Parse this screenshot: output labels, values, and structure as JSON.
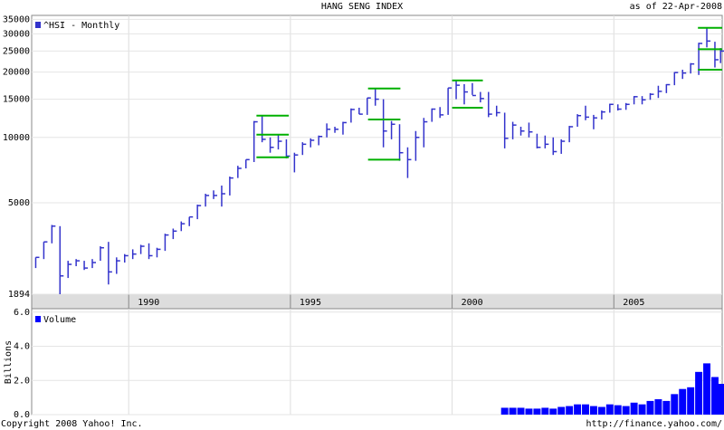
{
  "chart_data": [
    {
      "type": "ohlc",
      "title": "HANG SENG INDEX",
      "subtitle": "as of 22-Apr-2008",
      "series_name": "^HSI - Monthly",
      "color": "#3333cc",
      "log_scale": true,
      "grid": true,
      "x": [
        1987.125,
        1987.375,
        1987.625,
        1987.875,
        1988.125,
        1988.375,
        1988.625,
        1988.875,
        1989.125,
        1989.375,
        1989.625,
        1989.875,
        1990.125,
        1990.375,
        1990.625,
        1990.875,
        1991.125,
        1991.375,
        1991.625,
        1991.875,
        1992.125,
        1992.375,
        1992.625,
        1992.875,
        1993.125,
        1993.375,
        1993.625,
        1993.875,
        1994.125,
        1994.375,
        1994.625,
        1994.875,
        1995.125,
        1995.375,
        1995.625,
        1995.875,
        1996.125,
        1996.375,
        1996.625,
        1996.875,
        1997.125,
        1997.375,
        1997.625,
        1997.875,
        1998.125,
        1998.375,
        1998.625,
        1998.875,
        1999.125,
        1999.375,
        1999.625,
        1999.875,
        2000.125,
        2000.375,
        2000.625,
        2000.875,
        2001.125,
        2001.375,
        2001.625,
        2001.875,
        2002.125,
        2002.375,
        2002.625,
        2002.875,
        2003.125,
        2003.375,
        2003.625,
        2003.875,
        2004.125,
        2004.375,
        2004.625,
        2004.875,
        2005.125,
        2005.375,
        2005.625,
        2005.875,
        2006.125,
        2006.375,
        2006.625,
        2006.875,
        2007.125,
        2007.375,
        2007.625,
        2007.875,
        2008.125,
        2008.3
      ],
      "low": [
        2500,
        2750,
        3250,
        1894,
        2250,
        2550,
        2450,
        2500,
        2700,
        2100,
        2350,
        2650,
        2750,
        2900,
        2750,
        2800,
        3000,
        3400,
        3700,
        3900,
        4200,
        4800,
        5200,
        4800,
        5400,
        6500,
        7200,
        7700,
        9500,
        8500,
        8800,
        8000,
        6900,
        8300,
        9000,
        9200,
        10000,
        10500,
        10300,
        11700,
        12800,
        12700,
        14000,
        9000,
        9800,
        7800,
        6500,
        7800,
        9000,
        11800,
        12300,
        12700,
        15000,
        14200,
        15700,
        14500,
        12400,
        12500,
        8900,
        9800,
        10200,
        10000,
        8900,
        8900,
        8300,
        8400,
        9500,
        11200,
        12000,
        10900,
        12100,
        13000,
        13300,
        13400,
        14200,
        14200,
        14900,
        15200,
        16000,
        17400,
        18600,
        19700,
        19400,
        26000,
        21000,
        22000
      ],
      "high": [
        2800,
        3300,
        3950,
        3900,
        2700,
        2750,
        2700,
        2750,
        3150,
        3300,
        2800,
        2900,
        3050,
        3200,
        3250,
        3100,
        3600,
        3800,
        4100,
        4300,
        4900,
        5500,
        5700,
        6000,
        6600,
        7400,
        7900,
        11900,
        12600,
        10000,
        10300,
        9800,
        8500,
        9500,
        9900,
        10200,
        11600,
        11200,
        11800,
        13600,
        13700,
        15200,
        16800,
        15000,
        11900,
        11500,
        9000,
        10700,
        12300,
        13600,
        13800,
        16900,
        18300,
        17600,
        17800,
        16200,
        16200,
        14000,
        13000,
        11800,
        11200,
        11700,
        10400,
        10200,
        10000,
        9800,
        11300,
        12800,
        14000,
        12700,
        13300,
        14300,
        14200,
        14400,
        15500,
        15500,
        16000,
        17300,
        17600,
        20000,
        20500,
        22000,
        27300,
        31900,
        27600,
        25800
      ],
      "close": [
        2800,
        3300,
        3900,
        2300,
        2600,
        2700,
        2500,
        2650,
        3100,
        2400,
        2700,
        2850,
        2900,
        3150,
        2850,
        3050,
        3550,
        3700,
        4000,
        4300,
        4850,
        5400,
        5400,
        5500,
        6500,
        7200,
        7900,
        11800,
        9800,
        9000,
        9600,
        8200,
        8300,
        9300,
        9700,
        10100,
        10900,
        10900,
        11700,
        13450,
        12800,
        15200,
        15000,
        10700,
        11500,
        8500,
        7900,
        10000,
        11800,
        13500,
        12700,
        16900,
        17400,
        16200,
        15600,
        15100,
        12800,
        13000,
        9900,
        11400,
        10700,
        10600,
        9000,
        9300,
        8600,
        9600,
        11200,
        12600,
        12400,
        12300,
        13100,
        14200,
        13500,
        14200,
        15400,
        14900,
        15800,
        16300,
        17500,
        19900,
        19800,
        21800,
        27100,
        27800,
        22800,
        25000
      ],
      "levels": [
        {
          "x": [
            1993.95,
            1994.95
          ],
          "value": 12600
        },
        {
          "x": [
            1993.95,
            1994.95
          ],
          "value": 10300
        },
        {
          "x": [
            1993.95,
            1994.95
          ],
          "value": 8100
        },
        {
          "x": [
            1997.4,
            1998.4
          ],
          "value": 16800
        },
        {
          "x": [
            1997.4,
            1998.4
          ],
          "value": 12100
        },
        {
          "x": [
            1997.4,
            1998.4
          ],
          "value": 7900
        },
        {
          "x": [
            2000.0,
            2000.95
          ],
          "value": 18300
        },
        {
          "x": [
            2000.0,
            2000.95
          ],
          "value": 13700
        },
        {
          "x": [
            2007.6,
            2008.35
          ],
          "value": 32000
        },
        {
          "x": [
            2007.6,
            2008.35
          ],
          "value": 25500
        },
        {
          "x": [
            2007.6,
            2008.35
          ],
          "value": 20500
        }
      ],
      "level_color": "#00b000",
      "xlim": [
        1987.0,
        2008.35
      ],
      "xticks": [
        1990,
        1995,
        2000,
        2005
      ],
      "ylim": [
        1894,
        36500
      ],
      "yticks": [
        1894,
        5000,
        10000,
        15000,
        20000,
        25000,
        30000,
        35000
      ]
    },
    {
      "type": "bar",
      "series_name": "Volume",
      "y_label": "Billions",
      "color": "#0000ff",
      "x": [
        2001.625,
        2001.875,
        2002.125,
        2002.375,
        2002.625,
        2002.875,
        2003.125,
        2003.375,
        2003.625,
        2003.875,
        2004.125,
        2004.375,
        2004.625,
        2004.875,
        2005.125,
        2005.375,
        2005.625,
        2005.875,
        2006.125,
        2006.375,
        2006.625,
        2006.875,
        2007.125,
        2007.375,
        2007.625,
        2007.875,
        2008.125,
        2008.3
      ],
      "values": [
        0.4,
        0.4,
        0.4,
        0.35,
        0.35,
        0.4,
        0.35,
        0.45,
        0.5,
        0.6,
        0.6,
        0.5,
        0.45,
        0.6,
        0.55,
        0.5,
        0.7,
        0.6,
        0.8,
        0.9,
        0.8,
        1.2,
        1.5,
        1.6,
        2.5,
        3.0,
        2.2,
        1.8
      ],
      "xlim": [
        1987.0,
        2008.35
      ],
      "ylim": [
        0,
        6.2
      ],
      "yticks": [
        {
          "value": 0,
          "label": "0.0"
        },
        {
          "value": 2,
          "label": "2.0"
        },
        {
          "value": 4,
          "label": "4.0"
        },
        {
          "value": 6,
          "label": "6.0"
        }
      ]
    }
  ],
  "footer": {
    "left": "Copyright 2008 Yahoo! Inc.",
    "right": "http://finance.yahoo.com/"
  }
}
